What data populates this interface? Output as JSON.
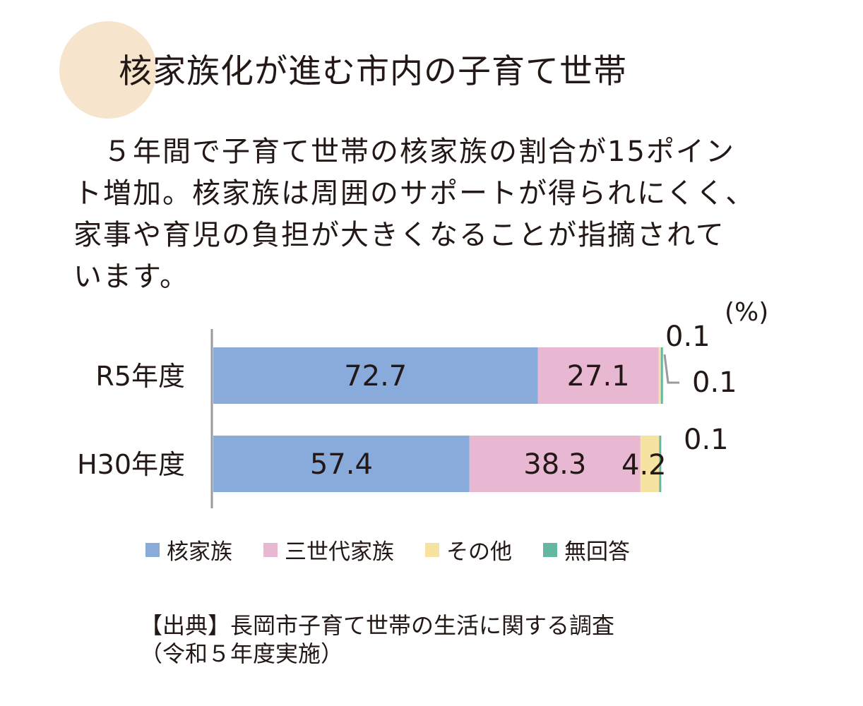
{
  "header": {
    "title": "核家族化が進む市内の子育て世帯"
  },
  "body": {
    "lines": [
      "　５年間で子育て世帯の核家族の割合が15ポイン",
      "ト増加。核家族は周囲のサポートが得られにくく、",
      "家事や育児の負担が大きくなることが指摘されて",
      "います。"
    ]
  },
  "chart_data": {
    "type": "bar",
    "orientation": "horizontal",
    "stacked": true,
    "unit": "(%)",
    "categories": [
      "R5年度",
      "H30年度"
    ],
    "series": [
      {
        "name": "核家族",
        "values": [
          72.7,
          57.4
        ],
        "color": "#88abdb"
      },
      {
        "name": "三世代家族",
        "values": [
          27.1,
          38.3
        ],
        "color": "#e8b8d3"
      },
      {
        "name": "その他",
        "values": [
          0.1,
          4.2
        ],
        "color": "#f7e3a1"
      },
      {
        "name": "無回答",
        "values": [
          0.1,
          0.1
        ],
        "color": "#64b8a2"
      }
    ],
    "xlim": [
      0,
      100
    ]
  },
  "source": {
    "line1": "【出典】長岡市子育て世帯の生活に関する調査",
    "line2": "（令和５年度実施）"
  }
}
